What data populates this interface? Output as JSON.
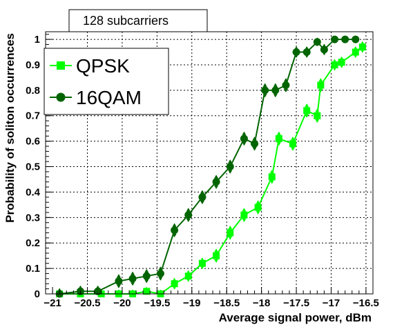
{
  "chart_data": {
    "type": "line",
    "title": "128 subcarriers",
    "xlabel": "Average signal power, dBm",
    "ylabel": "Probability of soliton occurrences",
    "xlim": [
      -21.1,
      -16.4
    ],
    "ylim": [
      0,
      1.03
    ],
    "grid": true,
    "legend_position": "top-left",
    "x_ticks": [
      -21,
      -20.5,
      -20,
      -19.5,
      -19,
      -18.5,
      -18,
      -17.5,
      -17,
      -16.5
    ],
    "x_tick_labels": [
      "−21",
      "−20.5",
      "−20",
      "−19.5",
      "−19",
      "−18.5",
      "−18",
      "−17.5",
      "−17",
      "−16.5"
    ],
    "y_ticks": [
      0,
      0.1,
      0.2,
      0.3,
      0.4,
      0.5,
      0.6,
      0.7,
      0.8,
      0.9,
      1
    ],
    "y_tick_labels": [
      "0",
      "0.1",
      "0.2",
      "0.3",
      "0.4",
      "0.5",
      "0.6",
      "0.7",
      "0.8",
      "0.9",
      "1"
    ],
    "series": [
      {
        "name": "QPSK",
        "color": "#00ff00",
        "marker": "square",
        "x": [
          -20.9,
          -20.6,
          -20.3,
          -20.05,
          -19.85,
          -19.65,
          -19.45,
          -19.25,
          -19.05,
          -18.85,
          -18.65,
          -18.45,
          -18.25,
          -18.05,
          -17.85,
          -17.75,
          -17.55,
          -17.35,
          -17.2,
          -17.15,
          -16.95,
          -16.85,
          -16.65,
          -16.55
        ],
        "values": [
          0.0,
          0.0,
          0.0,
          0.0,
          0.0,
          0.01,
          0.0,
          0.04,
          0.07,
          0.12,
          0.15,
          0.24,
          0.31,
          0.34,
          0.46,
          0.61,
          0.59,
          0.72,
          0.7,
          0.82,
          0.9,
          0.91,
          0.95,
          0.97
        ],
        "errors": [
          0.015,
          0.015,
          0.015,
          0.015,
          0.015,
          0.015,
          0.015,
          0.02,
          0.02,
          0.02,
          0.025,
          0.025,
          0.025,
          0.025,
          0.025,
          0.025,
          0.025,
          0.025,
          0.025,
          0.025,
          0.02,
          0.02,
          0.02,
          0.02
        ]
      },
      {
        "name": "16QAM",
        "color": "#006400",
        "marker": "circle",
        "x": [
          -20.9,
          -20.6,
          -20.35,
          -20.05,
          -19.85,
          -19.65,
          -19.45,
          -19.25,
          -19.05,
          -18.85,
          -18.65,
          -18.45,
          -18.25,
          -18.1,
          -17.95,
          -17.8,
          -17.65,
          -17.5,
          -17.35,
          -17.2,
          -17.1,
          -16.95,
          -16.8,
          -16.65
        ],
        "values": [
          0.0,
          0.01,
          0.01,
          0.05,
          0.06,
          0.07,
          0.08,
          0.25,
          0.31,
          0.38,
          0.44,
          0.5,
          0.61,
          0.59,
          0.8,
          0.8,
          0.82,
          0.95,
          0.95,
          0.99,
          0.96,
          1.0,
          1.0,
          1.0
        ],
        "errors": [
          0.02,
          0.02,
          0.02,
          0.025,
          0.025,
          0.025,
          0.025,
          0.025,
          0.025,
          0.025,
          0.025,
          0.025,
          0.025,
          0.025,
          0.025,
          0.025,
          0.025,
          0.02,
          0.02,
          0.015,
          0.02,
          0.01,
          0.01,
          0.01
        ]
      }
    ]
  }
}
